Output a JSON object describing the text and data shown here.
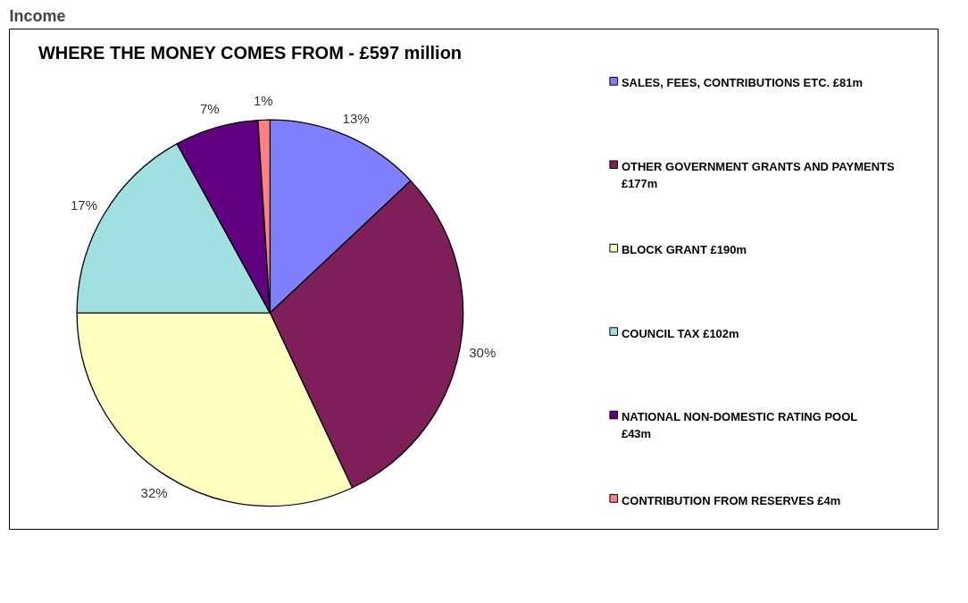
{
  "chart_data": {
    "type": "pie",
    "title": "Income",
    "subtitle": "WHERE THE MONEY COMES FROM - £597 million",
    "categories": [
      "SALES, FEES, CONTRIBUTIONS ETC. £81m",
      "OTHER GOVERNMENT GRANTS AND PAYMENTS £177m",
      "BLOCK GRANT £190m",
      "COUNCIL TAX £102m",
      "NATIONAL NON-DOMESTIC RATING POOL £43m",
      "CONTRIBUTION FROM RESERVES £4m"
    ],
    "values": [
      13,
      30,
      32,
      17,
      7,
      1
    ],
    "value_labels": [
      "13%",
      "30%",
      "32%",
      "17%",
      "7%",
      "1%"
    ],
    "colors": [
      "#8080ff",
      "#7f1f5a",
      "#ffffc0",
      "#a0e0e0",
      "#600080",
      "#ff8080"
    ],
    "legend": "right"
  }
}
